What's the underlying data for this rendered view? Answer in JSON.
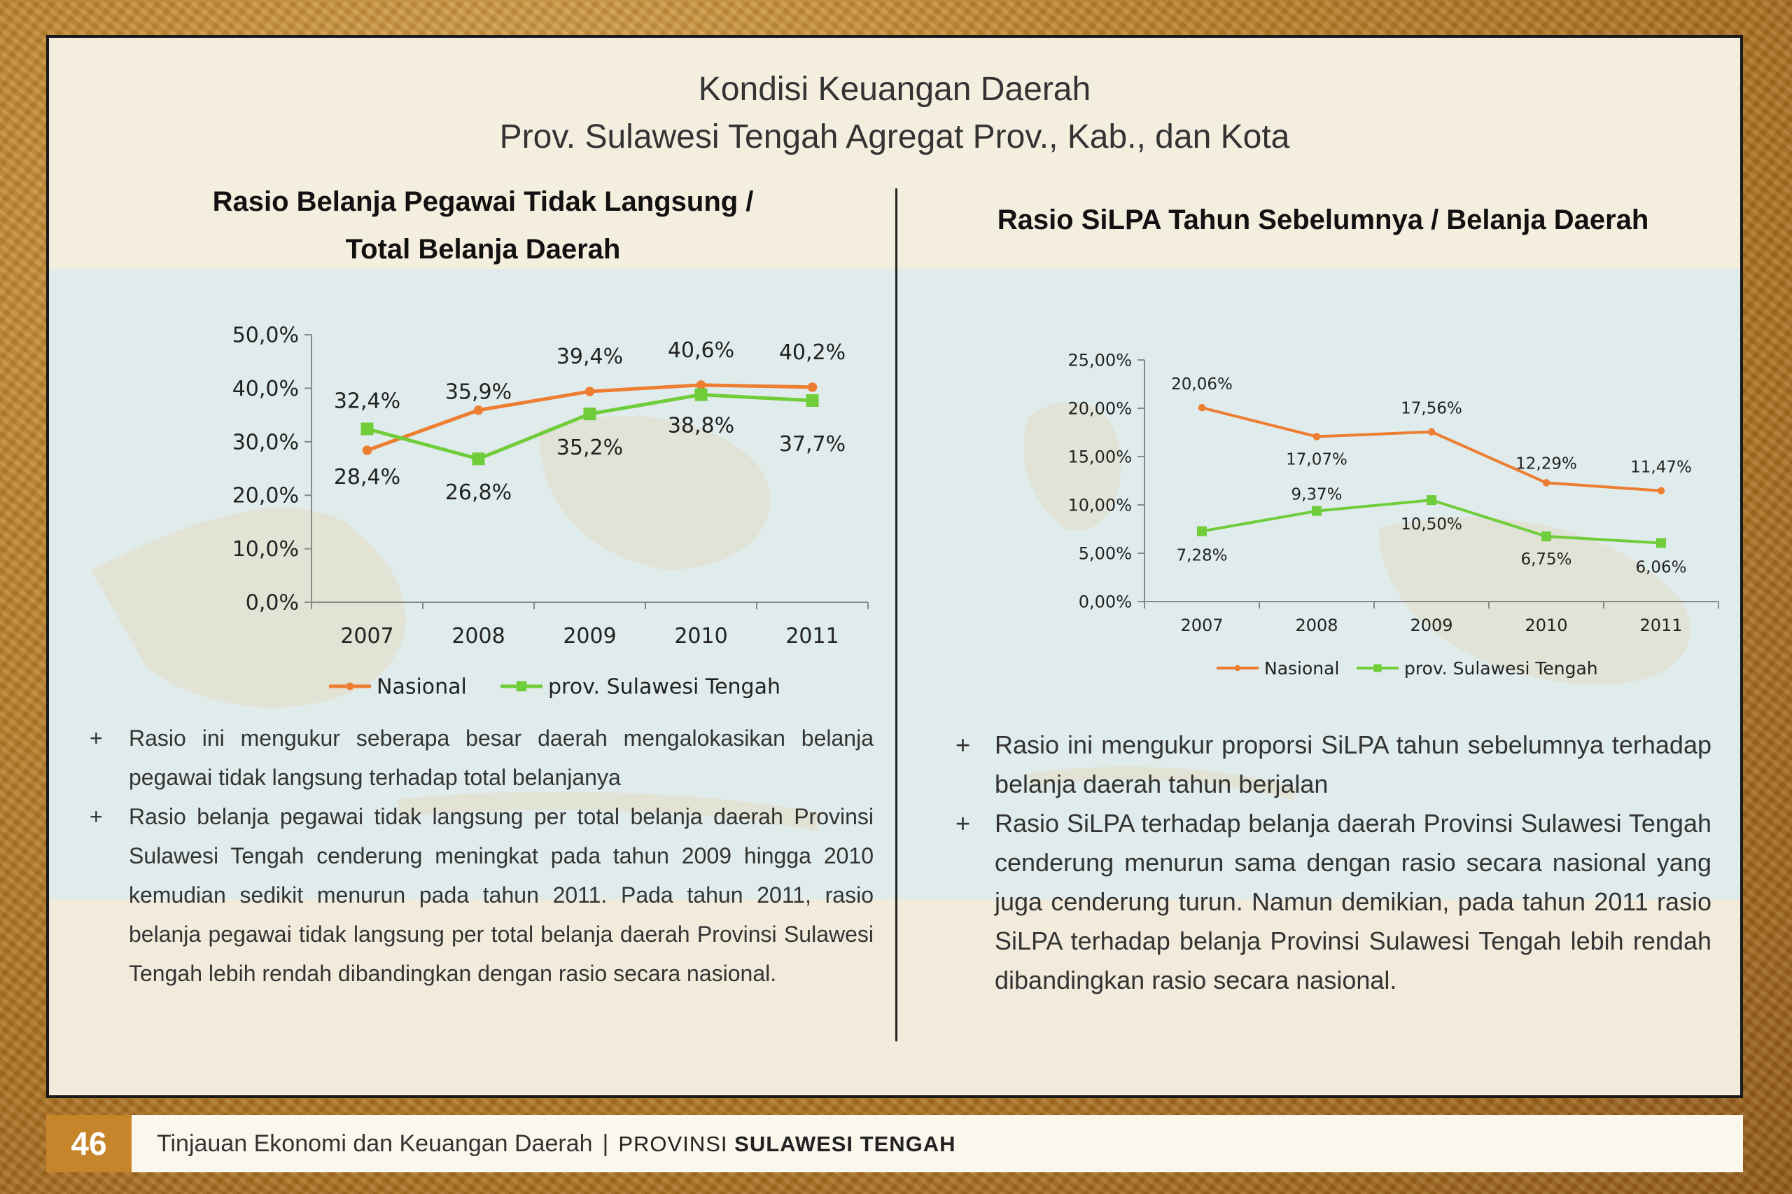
{
  "page": {
    "title_line1": "Kondisi Keuangan Daerah",
    "title_line2": "Prov. Sulawesi Tengah Agregat Prov., Kab., dan Kota"
  },
  "colors": {
    "nasional": "#ed7d31",
    "sulteng": "#6fcd3a",
    "accent": "#c7852b"
  },
  "left": {
    "title_line1": "Rasio Belanja Pegawai Tidak Langsung /",
    "title_line2": "Total Belanja Daerah",
    "bullets": [
      "Rasio ini mengukur seberapa besar daerah mengalokasikan belanja pegawai tidak langsung terhadap total belanjanya",
      "Rasio belanja pegawai tidak langsung per total belanja daerah Provinsi Sulawesi Tengah cenderung meningkat pada tahun 2009 hingga 2010 kemudian sedikit menurun pada tahun 2011. Pada tahun 2011, rasio belanja pegawai tidak langsung per total belanja daerah Provinsi Sulawesi Tengah lebih rendah dibandingkan dengan rasio secara nasional."
    ]
  },
  "right": {
    "title": "Rasio SiLPA Tahun Sebelumnya / Belanja Daerah",
    "bullets": [
      "Rasio ini mengukur proporsi SiLPA tahun sebelumnya terhadap belanja daerah tahun berjalan",
      "Rasio SiLPA terhadap belanja daerah Provinsi Sulawesi Tengah cenderung menurun sama dengan rasio secara nasional yang juga cenderung turun. Namun demikian, pada tahun 2011 rasio SiLPA terhadap belanja Provinsi Sulawesi Tengah lebih rendah dibandingkan rasio secara nasional."
    ]
  },
  "bullet_symbol": "+",
  "footer": {
    "page_number": "46",
    "text": "Tinjauan Ekonomi dan Keuangan Daerah",
    "separator": "|",
    "prov_prefix": "PROVINSI",
    "prov_name": "SULAWESI TENGAH"
  },
  "chart_data": [
    {
      "type": "line",
      "title": "Rasio Belanja Pegawai Tidak Langsung / Total Belanja Daerah",
      "categories": [
        "2007",
        "2008",
        "2009",
        "2010",
        "2011"
      ],
      "yticks": [
        "0,0%",
        "10,0%",
        "20,0%",
        "30,0%",
        "40,0%",
        "50,0%"
      ],
      "ylim": [
        0,
        50
      ],
      "legend_position": "bottom",
      "grid": false,
      "series": [
        {
          "name": "Nasional",
          "values": [
            28.4,
            35.9,
            39.4,
            40.6,
            40.2
          ],
          "labels": [
            "28,4%",
            "35,9%",
            "39,4%",
            "40,6%",
            "40,2%"
          ]
        },
        {
          "name": "prov. Sulawesi Tengah",
          "values": [
            32.4,
            26.8,
            35.2,
            38.8,
            37.7
          ],
          "labels": [
            "32,4%",
            "26,8%",
            "35,2%",
            "38,8%",
            "37,7%"
          ]
        }
      ]
    },
    {
      "type": "line",
      "title": "Rasio SiLPA Tahun Sebelumnya / Belanja Daerah",
      "categories": [
        "2007",
        "2008",
        "2009",
        "2010",
        "2011"
      ],
      "yticks": [
        "0,00%",
        "5,00%",
        "10,00%",
        "15,00%",
        "20,00%",
        "25,00%"
      ],
      "ylim": [
        0,
        25
      ],
      "legend_position": "bottom",
      "grid": false,
      "series": [
        {
          "name": "Nasional",
          "values": [
            20.06,
            17.07,
            17.56,
            12.29,
            11.47
          ],
          "labels": [
            "20,06%",
            "17,07%",
            "17,56%",
            "12,29%",
            "11,47%"
          ]
        },
        {
          "name": "prov. Sulawesi Tengah",
          "values": [
            7.28,
            9.37,
            10.5,
            6.75,
            6.06
          ],
          "labels": [
            "7,28%",
            "9,37%",
            "10,50%",
            "6,75%",
            "6,06%"
          ]
        }
      ]
    }
  ]
}
